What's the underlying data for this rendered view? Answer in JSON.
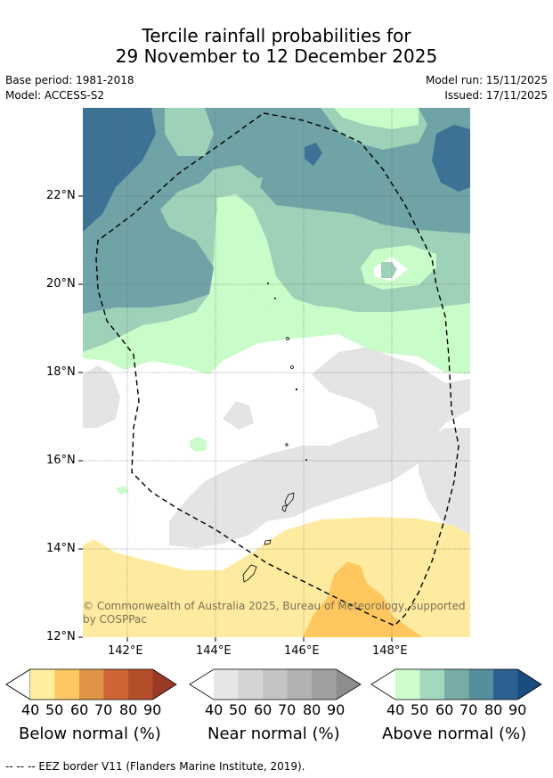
{
  "title": {
    "line1": "Tercile rainfall probabilities for",
    "line2": "29 November to 12 December 2025"
  },
  "info": {
    "base_period": "Base period: 1981-2018",
    "model": "Model: ACCESS-S2",
    "model_run": "Model run: 15/11/2025",
    "issued": "Issued: 17/11/2025"
  },
  "map": {
    "lat_labels": [
      "22°N",
      "20°N",
      "18°N",
      "16°N",
      "14°N",
      "12°N"
    ],
    "lon_labels": [
      "142°E",
      "144°E",
      "146°E",
      "148°E"
    ],
    "copyright_line1": "© Commonwealth of Australia 2025, Bureau of Meteorology, supported",
    "copyright_line2": "by COSPPac",
    "colors": {
      "above_50": "#c8fcc8",
      "above_60": "#9ed2b8",
      "above_70": "#6fa3a6",
      "above_80": "#3e7295",
      "near_normal": "#e4e4e4",
      "below_40": "#ffeba0",
      "below_50": "#ffc75e"
    }
  },
  "colorbars": {
    "ticks": [
      "40",
      "50",
      "60",
      "70",
      "80",
      "90"
    ],
    "below": {
      "label": "Below normal (%)",
      "colors": [
        "#ffee9e",
        "#fec761",
        "#e09447",
        "#cf6434",
        "#b34d2a",
        "#9a3a26"
      ]
    },
    "near": {
      "label": "Near normal (%)",
      "colors": [
        "#e6e6e6",
        "#d4d4d4",
        "#c4c4c4",
        "#b2b2b2",
        "#a0a0a0",
        "#8d8d8d"
      ]
    },
    "above": {
      "label": "Above normal (%)",
      "colors": [
        "#cdfdcd",
        "#a3d8bc",
        "#77aca6",
        "#568f9c",
        "#2d6092",
        "#1a4a7e"
      ]
    }
  },
  "footer": {
    "eez_note": "--  --  -- EEZ border V11 (Flanders Marine Institute, 2019)."
  }
}
